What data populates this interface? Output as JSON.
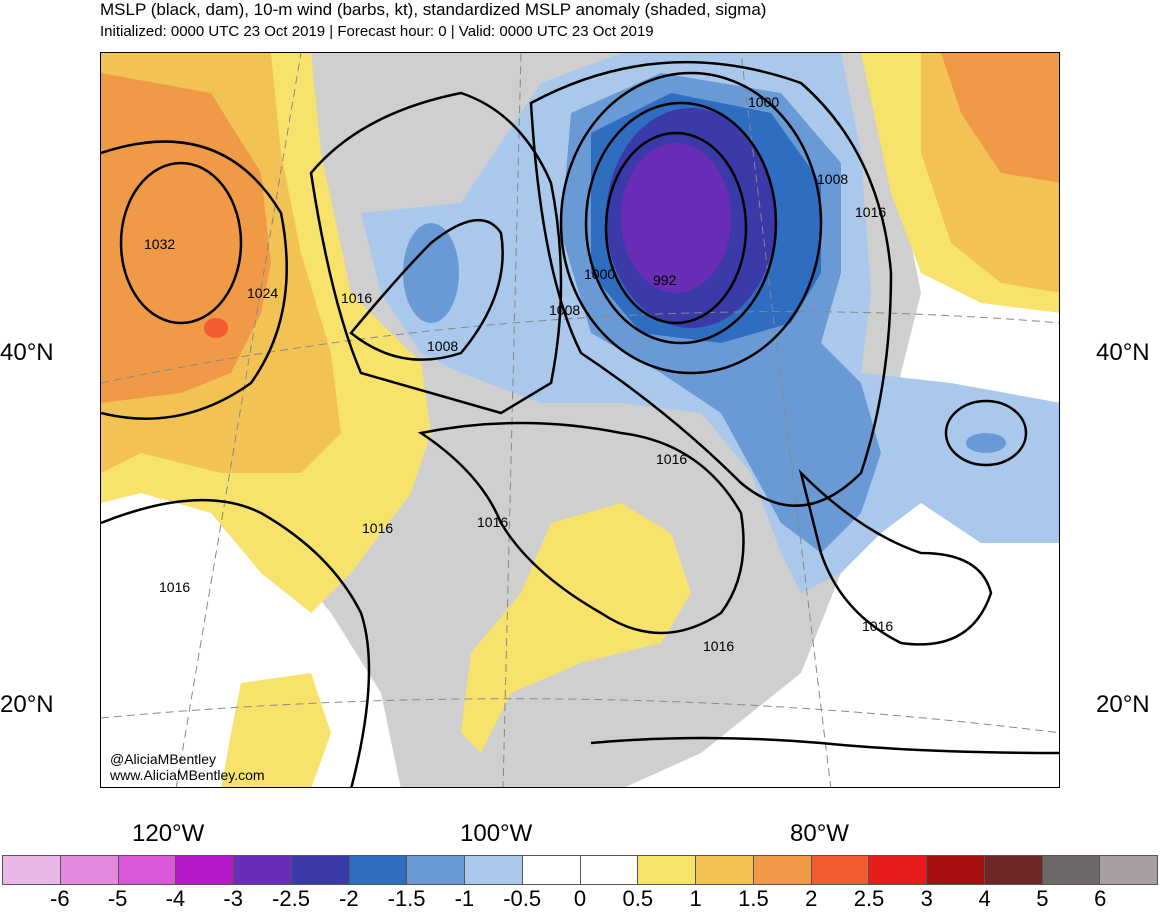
{
  "title": "MSLP (black, dam), 10-m wind (barbs, kt), standardized MSLP anomaly (shaded, sigma)",
  "subtitle": "Initialized: 0000 UTC 23 Oct 2019 | Forecast hour: 0 | Valid: 0000 UTC 23 Oct 2019",
  "credit": {
    "handle": "@AliciaMBentley",
    "url": "www.AliciaMBentley.com"
  },
  "lat_labels": {
    "left_40": "40°N",
    "right_40": "40°N",
    "left_20": "20°N",
    "right_20": "20°N"
  },
  "lon_labels": {
    "w120": "120°W",
    "w100": "100°W",
    "w80": "80°W"
  },
  "isobar_labels": {
    "l1032": "1032",
    "l1024": "1024",
    "l1016_nw": "1016",
    "l1008_w": "1008",
    "l1008_c": "1008",
    "l1000_low": "1000",
    "l992": "992",
    "l1000_ne": "1000",
    "l1008_ne": "1008",
    "l1016_ne": "1016",
    "l1016_sw": "1016",
    "l1016_mex": "1016",
    "l1016_texas": "1016",
    "l1016_ohio": "1016",
    "l1016_gulf": "1016",
    "l1016_carib": "1016"
  },
  "colorbar": {
    "colors": [
      "#e9b8e6",
      "#e38ae0",
      "#d957d8",
      "#b51ac9",
      "#6a2db7",
      "#3a3aa8",
      "#2f6dc0",
      "#6a9ad6",
      "#a9c8ec",
      "#ffffff",
      "#ffffff",
      "#f7e36b",
      "#f2c254",
      "#f09a48",
      "#f05b32",
      "#e81a1a",
      "#a8100f",
      "#6e2725",
      "#6e6868",
      "#a8a0a0"
    ],
    "ticks": [
      "-6",
      "-5",
      "-4",
      "-3",
      "-2.5",
      "-2",
      "-1.5",
      "-1",
      "-0.5",
      "0",
      "0.5",
      "1",
      "1.5",
      "2",
      "2.5",
      "3",
      "4",
      "5",
      "6"
    ]
  },
  "colors": {
    "gray_land": "#cfcfcf",
    "anomaly_yellow": "#f7e36b",
    "anomaly_orange": "#f2c254",
    "anomaly_dorange": "#f09a48",
    "anomaly_red": "#f05b32",
    "anomaly_lblue": "#a9c8ec",
    "anomaly_blue": "#6a9ad6",
    "anomaly_mblue": "#2f6dc0",
    "anomaly_dblue": "#3a3aa8",
    "anomaly_purple": "#6a2db7"
  }
}
